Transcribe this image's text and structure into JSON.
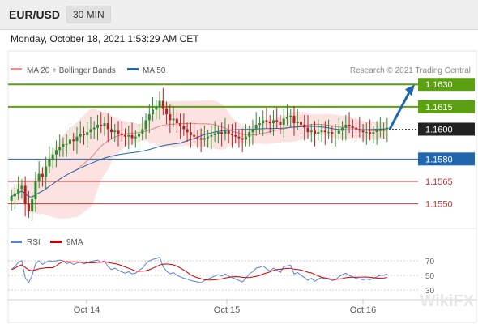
{
  "header": {
    "symbol": "EUR/USD",
    "timeframe": "30 MIN"
  },
  "datetime": "Monday, October 18, 2021 1:53:29 AM CET",
  "legend": {
    "bollinger": "MA 20 + Bollinger Bands",
    "ma50": "MA 50"
  },
  "credit": "Research © 2021 Trading Central",
  "colors": {
    "resistance": "#5aa011",
    "support": "#2166ac",
    "target": "#cc3333",
    "current": "#222222",
    "bollinger_fill": "#fde2e2",
    "ma20": "#e36d6d",
    "ma50": "#2166ac",
    "rsi": "#5a7fd6",
    "rsi_ma": "#cc0000",
    "candle_up": "#2e8b2e",
    "candle_down": "#b22222"
  },
  "levels": [
    {
      "value": "1.1630",
      "kind": "resistance"
    },
    {
      "value": "1.1615",
      "kind": "resistance"
    },
    {
      "value": "1.1600",
      "kind": "current"
    },
    {
      "value": "1.1580",
      "kind": "support"
    },
    {
      "value": "1.1565",
      "kind": "target"
    },
    {
      "value": "1.1550",
      "kind": "target"
    }
  ],
  "chart_data": {
    "type": "candlestick",
    "x_ticks": [
      "Oct 14",
      "Oct 15",
      "Oct 16"
    ],
    "close": [
      1.1555,
      1.1557,
      1.156,
      1.1562,
      1.155,
      1.1545,
      1.1553,
      1.1565,
      1.157,
      1.1568,
      1.1575,
      1.158,
      1.1583,
      1.1586,
      1.1588,
      1.159,
      1.159,
      1.1593,
      1.1592,
      1.1595,
      1.1597,
      1.1596,
      1.1598,
      1.16,
      1.1601,
      1.1603,
      1.1602,
      1.1604,
      1.16,
      1.1598,
      1.1599,
      1.1597,
      1.1596,
      1.1595,
      1.1596,
      1.1594,
      1.1595,
      1.1597,
      1.16,
      1.1606,
      1.161,
      1.1613,
      1.1615,
      1.1619,
      1.1614,
      1.161,
      1.1606,
      1.1607,
      1.1604,
      1.1602,
      1.16,
      1.1598,
      1.1596,
      1.1595,
      1.1594,
      1.1593,
      1.1594,
      1.1595,
      1.1596,
      1.1597,
      1.1598,
      1.1597,
      1.1599,
      1.1597,
      1.1596,
      1.1595,
      1.1594,
      1.1593,
      1.1595,
      1.1598,
      1.16,
      1.1603,
      1.1604,
      1.1606,
      1.1605,
      1.1604,
      1.1606,
      1.1605,
      1.1603,
      1.1607,
      1.1608,
      1.1609,
      1.1604,
      1.1605,
      1.1603,
      1.1601,
      1.1598,
      1.1599,
      1.1597,
      1.1598,
      1.1599,
      1.1598,
      1.1598,
      1.1597,
      1.1597,
      1.1599,
      1.1601,
      1.1603,
      1.1602,
      1.1601,
      1.16,
      1.1599,
      1.1598,
      1.1598,
      1.1597,
      1.1598,
      1.1599,
      1.16,
      1.16,
      1.1601
    ],
    "rsi": [
      58,
      62,
      68,
      70,
      47,
      40,
      50,
      66,
      70,
      65,
      68,
      70,
      69,
      70,
      71,
      70,
      66,
      68,
      65,
      67,
      68,
      66,
      67,
      69,
      70,
      71,
      68,
      70,
      62,
      58,
      60,
      57,
      55,
      53,
      55,
      52,
      53,
      57,
      60,
      66,
      70,
      72,
      73,
      75,
      62,
      56,
      52,
      54,
      50,
      48,
      46,
      45,
      43,
      42,
      41,
      40,
      43,
      45,
      47,
      49,
      51,
      49,
      52,
      49,
      47,
      45,
      43,
      41,
      46,
      52,
      55,
      60,
      61,
      63,
      59,
      56,
      60,
      57,
      54,
      62,
      63,
      64,
      52,
      54,
      50,
      47,
      43,
      46,
      42,
      45,
      47,
      45,
      45,
      43,
      44,
      48,
      51,
      53,
      50,
      48,
      46,
      45,
      44,
      45,
      44,
      46,
      48,
      50,
      50,
      52
    ],
    "rsi_ylim": [
      30,
      70
    ],
    "rsi_ticks": [
      "70",
      "50",
      "30"
    ],
    "projection": {
      "from": 1.16,
      "to": 1.163
    },
    "ylim": [
      1.154,
      1.1635
    ]
  },
  "rsi_legend": {
    "rsi": "RSI",
    "ma": "9MA"
  },
  "watermark": "WikiFX"
}
